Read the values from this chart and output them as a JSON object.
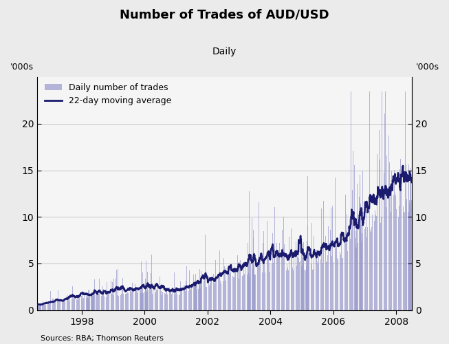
{
  "title": "Number of Trades of AUD/USD",
  "subtitle": "Daily",
  "ylabel_left": "'000s",
  "ylabel_right": "'000s",
  "source": "Sources: RBA; Thomson Reuters",
  "bar_color": "#9999cc",
  "line_color": "#1a1a6e",
  "background_color": "#ebebeb",
  "plot_background": "#f5f5f5",
  "ylim": [
    0,
    25
  ],
  "yticks": [
    0,
    5,
    10,
    15,
    20
  ],
  "ma_window": 22,
  "legend_labels": [
    "Daily number of trades",
    "22-day moving average"
  ]
}
